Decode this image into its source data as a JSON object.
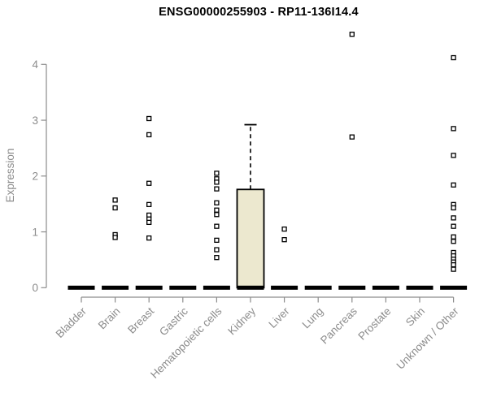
{
  "chart_data": {
    "type": "boxplot",
    "title": "ENSG00000255903 - RP11-136I14.4",
    "ylabel": "Expression",
    "xlabel": "",
    "ylim": [
      0,
      4
    ],
    "yticks": [
      0,
      1,
      2,
      3,
      4
    ],
    "grid": false,
    "legend": null,
    "categories": [
      "Bladder",
      "Brain",
      "Breast",
      "Gastric",
      "Hematopoietic cells",
      "Kidney",
      "Liver",
      "Lung",
      "Pancreas",
      "Prostate",
      "Skin",
      "Unknown / Other"
    ],
    "boxes": [
      {
        "category": "Bladder",
        "q1": 0,
        "median": 0,
        "q3": 0,
        "whisker_low": 0,
        "whisker_high": 0,
        "outliers": []
      },
      {
        "category": "Brain",
        "q1": 0,
        "median": 0,
        "q3": 0,
        "whisker_low": 0,
        "whisker_high": 0,
        "outliers": [
          1.57,
          1.43,
          0.95,
          0.9
        ]
      },
      {
        "category": "Breast",
        "q1": 0,
        "median": 0,
        "q3": 0,
        "whisker_low": 0,
        "whisker_high": 0,
        "outliers": [
          3.03,
          2.74,
          1.87,
          1.49,
          1.3,
          1.23,
          1.17,
          0.89
        ]
      },
      {
        "category": "Gastric",
        "q1": 0,
        "median": 0,
        "q3": 0,
        "whisker_low": 0,
        "whisker_high": 0,
        "outliers": []
      },
      {
        "category": "Hematopoietic cells",
        "q1": 0,
        "median": 0,
        "q3": 0,
        "whisker_low": 0,
        "whisker_high": 0,
        "outliers": [
          2.05,
          1.95,
          1.89,
          1.77,
          1.52,
          1.39,
          1.31,
          1.1,
          0.85,
          0.68,
          0.54
        ]
      },
      {
        "category": "Kidney",
        "q1": 0,
        "median": 0,
        "q3": 1.76,
        "whisker_low": 0,
        "whisker_high": 2.92,
        "outliers": []
      },
      {
        "category": "Liver",
        "q1": 0,
        "median": 0,
        "q3": 0,
        "whisker_low": 0,
        "whisker_high": 0,
        "outliers": [
          1.05,
          0.86
        ]
      },
      {
        "category": "Lung",
        "q1": 0,
        "median": 0,
        "q3": 0,
        "whisker_low": 0,
        "whisker_high": 0,
        "outliers": []
      },
      {
        "category": "Pancreas",
        "q1": 0,
        "median": 0,
        "q3": 0,
        "whisker_low": 0,
        "whisker_high": 0,
        "outliers": [
          4.54,
          2.7
        ]
      },
      {
        "category": "Prostate",
        "q1": 0,
        "median": 0,
        "q3": 0,
        "whisker_low": 0,
        "whisker_high": 0,
        "outliers": []
      },
      {
        "category": "Skin",
        "q1": 0,
        "median": 0,
        "q3": 0,
        "whisker_low": 0,
        "whisker_high": 0,
        "outliers": []
      },
      {
        "category": "Unknown / Other",
        "q1": 0,
        "median": 0,
        "q3": 0,
        "whisker_low": 0,
        "whisker_high": 0,
        "outliers": [
          4.12,
          2.85,
          2.37,
          1.84,
          1.49,
          1.43,
          1.25,
          1.1,
          0.91,
          0.83,
          0.63,
          0.57,
          0.51,
          0.46,
          0.41,
          0.33
        ]
      }
    ],
    "colors": {
      "box_fill": "#ece8cf",
      "box_stroke": "#000000",
      "median": "#000000",
      "outlier_stroke": "#000000",
      "outlier_fill": "#ffffff",
      "axis": "#8c8c8c",
      "axis_text": "#8c8c8c",
      "title": "#000000",
      "background": "#ffffff"
    }
  }
}
